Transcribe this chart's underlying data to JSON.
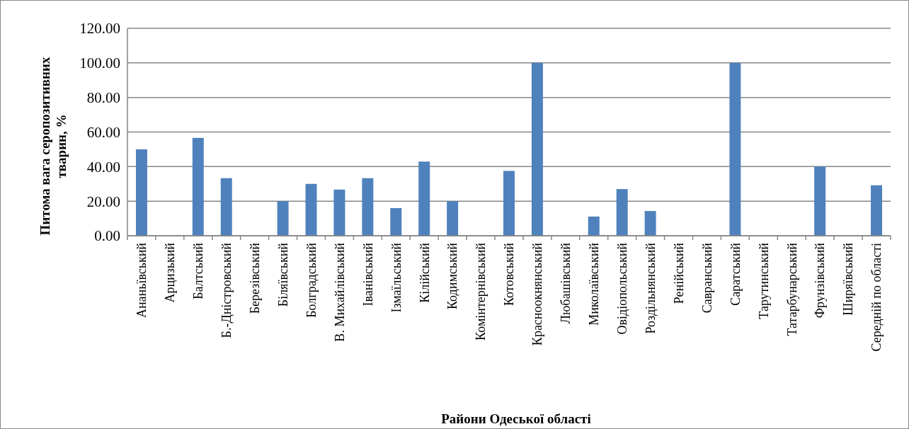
{
  "chart_data": {
    "type": "bar",
    "xlabel": "Райони Одеської області",
    "ylabel": "Питома вага серопозитивних тварин, %",
    "categories": [
      "Ананьївський",
      "Арцизький",
      "Балтський",
      "Б.-Дністровський",
      "Березівський",
      "Біляївський",
      "Болградський",
      "В. Михайлівський",
      "Іванівський",
      "Ізмаїльський",
      "Кілійський",
      "Кодимський",
      "Комінтернівський",
      "Котовський",
      "Красноокнянський",
      "Любашівський",
      "Миколаївський",
      "Овідіопольський",
      "Роздільнянський",
      "Ренійський",
      "Савранський",
      "Саратський",
      "Тарутинський",
      "Татарбунарський",
      "Фрунзівський",
      "Ширяївський",
      "Середній по області"
    ],
    "values": [
      50,
      0,
      56.6,
      33.3,
      0,
      20,
      30,
      26.7,
      33.3,
      16,
      42.9,
      20,
      0,
      37.5,
      100,
      0,
      11.1,
      27,
      14.3,
      0,
      0,
      100,
      0,
      0,
      40,
      0,
      29.2
    ],
    "color": "#4f81bd",
    "ylim": [
      0,
      120
    ],
    "yticks": [
      {
        "value": 0,
        "label": "0.00"
      },
      {
        "value": 20,
        "label": "20.00"
      },
      {
        "value": 40,
        "label": "40.00"
      },
      {
        "value": 60,
        "label": "60.00"
      },
      {
        "value": 80,
        "label": "80.00"
      },
      {
        "value": 100,
        "label": "100.00"
      },
      {
        "value": 120,
        "label": "120.00"
      }
    ],
    "grid": "y"
  }
}
